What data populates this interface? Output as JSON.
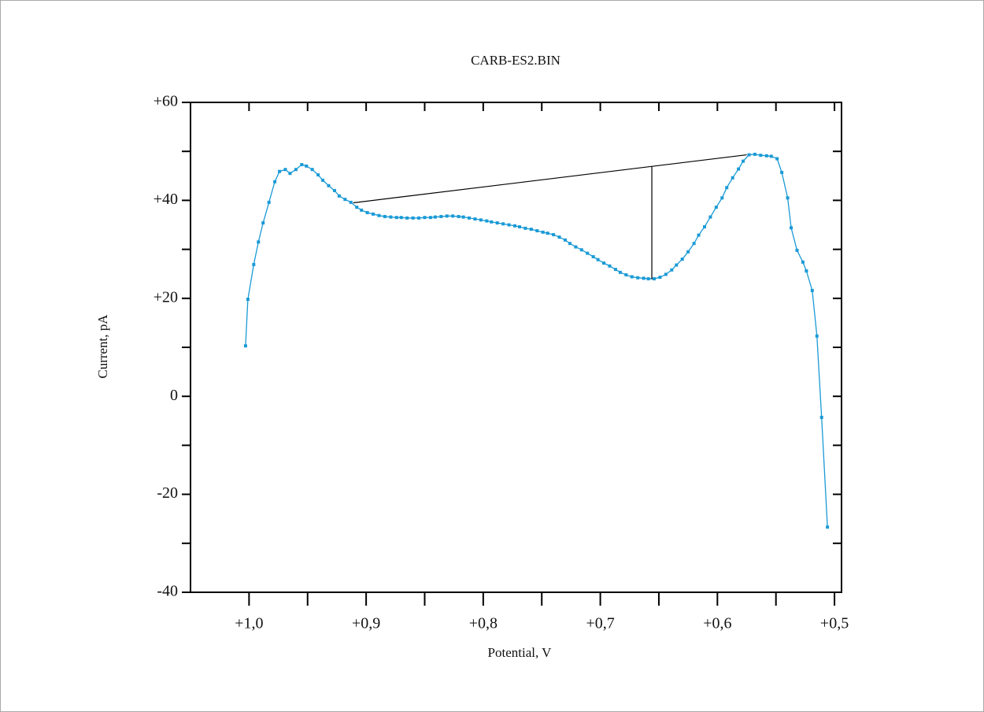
{
  "chart_data": {
    "type": "line",
    "title": "CARB-ES2.BIN",
    "xlabel": "Potential, V",
    "ylabel": "Current, pA",
    "xlim": [
      1.05,
      0.494
    ],
    "ylim": [
      -40,
      60
    ],
    "xticks": [
      {
        "value": 1.0,
        "label": "+1,0"
      },
      {
        "value": 0.9,
        "label": "+0,9"
      },
      {
        "value": 0.8,
        "label": "+0,8"
      },
      {
        "value": 0.7,
        "label": "+0,7"
      },
      {
        "value": 0.6,
        "label": "+0,6"
      },
      {
        "value": 0.5,
        "label": "+0,5"
      }
    ],
    "xminorticks": [
      0.95,
      0.85,
      0.75,
      0.65,
      0.55
    ],
    "yticks": [
      {
        "value": 60,
        "label": "+60"
      },
      {
        "value": 40,
        "label": "+40"
      },
      {
        "value": 20,
        "label": "+20"
      },
      0,
      -20,
      -40
    ],
    "yminorticks": [
      50,
      30,
      10,
      -10,
      -30
    ],
    "series": [
      {
        "color": "#1a9ad6",
        "x": [
          1.003,
          1.001,
          0.996,
          0.992,
          0.988,
          0.983,
          0.978,
          0.974,
          0.969,
          0.965,
          0.96,
          0.955,
          0.951,
          0.946,
          0.941,
          0.937,
          0.932,
          0.927,
          0.923,
          0.918,
          0.913,
          0.908,
          0.904,
          0.899,
          0.894,
          0.889,
          0.884,
          0.879,
          0.874,
          0.87,
          0.865,
          0.86,
          0.855,
          0.85,
          0.845,
          0.841,
          0.836,
          0.831,
          0.826,
          0.821,
          0.817,
          0.812,
          0.807,
          0.802,
          0.797,
          0.793,
          0.788,
          0.783,
          0.778,
          0.773,
          0.769,
          0.764,
          0.759,
          0.754,
          0.749,
          0.745,
          0.74,
          0.735,
          0.73,
          0.726,
          0.721,
          0.716,
          0.711,
          0.706,
          0.702,
          0.697,
          0.692,
          0.687,
          0.683,
          0.678,
          0.673,
          0.668,
          0.663,
          0.659,
          0.654,
          0.649,
          0.644,
          0.639,
          0.635,
          0.63,
          0.625,
          0.62,
          0.616,
          0.611,
          0.606,
          0.601,
          0.596,
          0.592,
          0.587,
          0.582,
          0.578,
          0.573,
          0.568,
          0.563,
          0.558,
          0.554,
          0.549,
          0.545,
          0.54,
          0.537,
          0.532,
          0.527,
          0.524,
          0.519,
          0.515,
          0.511,
          0.506
        ],
        "values": [
          10.3,
          19.8,
          26.9,
          31.5,
          35.4,
          39.6,
          43.8,
          45.9,
          46.3,
          45.5,
          46.3,
          47.3,
          47.0,
          46.3,
          45.2,
          44.1,
          43.0,
          42.0,
          40.9,
          40.2,
          39.6,
          38.6,
          38.0,
          37.5,
          37.2,
          36.9,
          36.7,
          36.6,
          36.5,
          36.5,
          36.4,
          36.4,
          36.4,
          36.5,
          36.5,
          36.6,
          36.7,
          36.8,
          36.8,
          36.7,
          36.6,
          36.4,
          36.2,
          36.0,
          35.8,
          35.6,
          35.4,
          35.2,
          35.0,
          34.8,
          34.6,
          34.3,
          34.1,
          33.8,
          33.5,
          33.3,
          33.0,
          32.5,
          31.9,
          31.2,
          30.5,
          29.9,
          29.2,
          28.5,
          27.9,
          27.2,
          26.6,
          25.9,
          25.3,
          24.8,
          24.4,
          24.2,
          24.1,
          24.0,
          24.0,
          24.3,
          24.9,
          25.8,
          26.8,
          28.0,
          29.5,
          31.2,
          32.9,
          34.6,
          36.6,
          38.6,
          40.5,
          42.6,
          44.6,
          46.4,
          48.0,
          49.3,
          49.4,
          49.2,
          49.1,
          49.0,
          48.5,
          45.7,
          40.5,
          34.4,
          29.8,
          27.4,
          25.6,
          21.6,
          12.3,
          -4.3,
          -26.7
        ]
      }
    ],
    "baseline": {
      "x": [
        0.911,
        0.575
      ],
      "y": [
        39.5,
        49.3
      ]
    },
    "peak_line": {
      "x": 0.656,
      "y": [
        23.9,
        46.9
      ]
    }
  }
}
